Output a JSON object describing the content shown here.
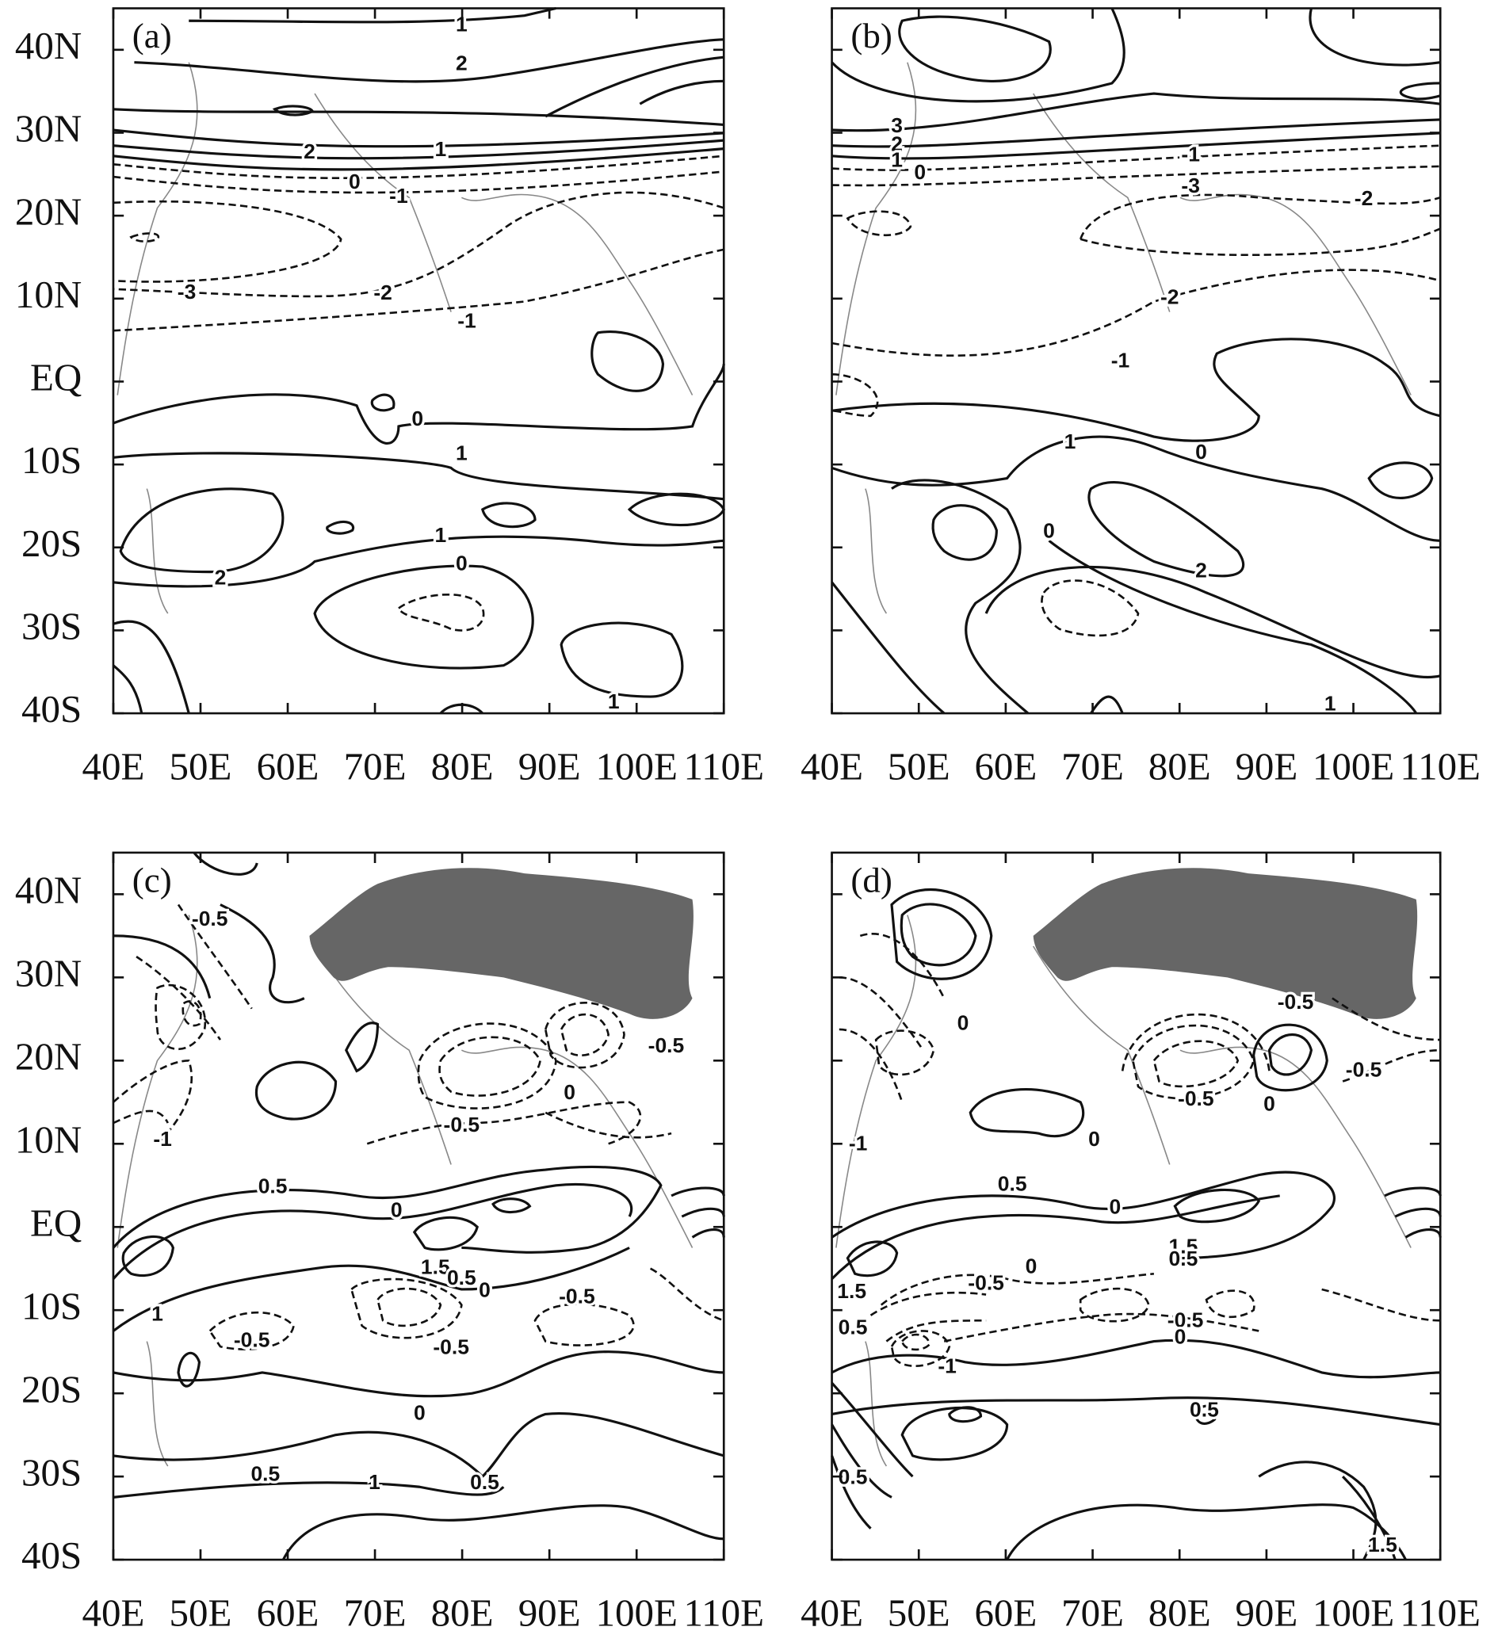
{
  "chart_data": [
    {
      "type": "contour",
      "panel_label": "(a)",
      "xlim": [
        40,
        110
      ],
      "ylim": [
        -40,
        45
      ],
      "xticks": [
        {
          "value": 40,
          "label": "40E"
        },
        {
          "value": 50,
          "label": "50E"
        },
        {
          "value": 60,
          "label": "60E"
        },
        {
          "value": 70,
          "label": "70E"
        },
        {
          "value": 80,
          "label": "80E"
        },
        {
          "value": 90,
          "label": "90E"
        },
        {
          "value": 100,
          "label": "100E"
        },
        {
          "value": 110,
          "label": "110E"
        }
      ],
      "yticks": [
        {
          "value": 40,
          "label": "40N"
        },
        {
          "value": 30,
          "label": "30N"
        },
        {
          "value": 20,
          "label": "20N"
        },
        {
          "value": 10,
          "label": "10N"
        },
        {
          "value": 0,
          "label": "EQ"
        },
        {
          "value": -10,
          "label": "10S"
        },
        {
          "value": -20,
          "label": "20S"
        },
        {
          "value": -30,
          "label": "30S"
        },
        {
          "value": -40,
          "label": "40S"
        }
      ],
      "contour_labels": [
        "1",
        "2",
        "2",
        "1",
        "0",
        "-1",
        "-2",
        "-3",
        "-1",
        "0",
        "1",
        "1",
        "0",
        "2",
        "1"
      ]
    },
    {
      "type": "contour",
      "panel_label": "(b)",
      "xlim": [
        40,
        110
      ],
      "ylim": [
        -40,
        45
      ],
      "xticks": [
        {
          "value": 40,
          "label": "40E"
        },
        {
          "value": 50,
          "label": "50E"
        },
        {
          "value": 60,
          "label": "60E"
        },
        {
          "value": 70,
          "label": "70E"
        },
        {
          "value": 80,
          "label": "80E"
        },
        {
          "value": 90,
          "label": "90E"
        },
        {
          "value": 100,
          "label": "100E"
        },
        {
          "value": 110,
          "label": "110E"
        }
      ],
      "contour_labels": [
        "3",
        "2",
        "1",
        "0",
        "-1",
        "-3",
        "-2",
        "-2",
        "-1",
        "1",
        "0",
        "0",
        "2",
        "1"
      ]
    },
    {
      "type": "contour",
      "panel_label": "(c)",
      "xlim": [
        40,
        110
      ],
      "ylim": [
        -40,
        45
      ],
      "xticks": [
        {
          "value": 40,
          "label": "40E"
        },
        {
          "value": 50,
          "label": "50E"
        },
        {
          "value": 60,
          "label": "60E"
        },
        {
          "value": 70,
          "label": "70E"
        },
        {
          "value": 80,
          "label": "80E"
        },
        {
          "value": 90,
          "label": "90E"
        },
        {
          "value": 100,
          "label": "100E"
        },
        {
          "value": 110,
          "label": "110E"
        }
      ],
      "yticks": [
        {
          "value": 40,
          "label": "40N"
        },
        {
          "value": 30,
          "label": "30N"
        },
        {
          "value": 20,
          "label": "20N"
        },
        {
          "value": 10,
          "label": "10N"
        },
        {
          "value": 0,
          "label": "EQ"
        },
        {
          "value": -10,
          "label": "10S"
        },
        {
          "value": -20,
          "label": "20S"
        },
        {
          "value": -30,
          "label": "30S"
        },
        {
          "value": -40,
          "label": "40S"
        }
      ],
      "contour_labels": [
        "-0.5",
        "-0.5",
        "0",
        "-0.5",
        "-1",
        "0.5",
        "0",
        "1.5",
        "0.5",
        "0",
        "-0.5",
        "-0.5",
        "-0.5",
        "1",
        "0",
        "0.5",
        "1",
        "0.5"
      ]
    },
    {
      "type": "contour",
      "panel_label": "(d)",
      "xlim": [
        40,
        110
      ],
      "ylim": [
        -40,
        45
      ],
      "xticks": [
        {
          "value": 40,
          "label": "40E"
        },
        {
          "value": 50,
          "label": "50E"
        },
        {
          "value": 60,
          "label": "60E"
        },
        {
          "value": 70,
          "label": "70E"
        },
        {
          "value": 80,
          "label": "80E"
        },
        {
          "value": 90,
          "label": "90E"
        },
        {
          "value": 100,
          "label": "100E"
        },
        {
          "value": 110,
          "label": "110E"
        }
      ],
      "contour_labels": [
        "0",
        "-0.5",
        "-0.5",
        "-0.5",
        "0",
        "0",
        "-1",
        "0.5",
        "0",
        "1.5",
        "0.5",
        "0",
        "-0.5",
        "-0.5",
        "0",
        "1.5",
        "0.5",
        "-1",
        "0.5",
        "0.5",
        "1.5"
      ]
    }
  ]
}
